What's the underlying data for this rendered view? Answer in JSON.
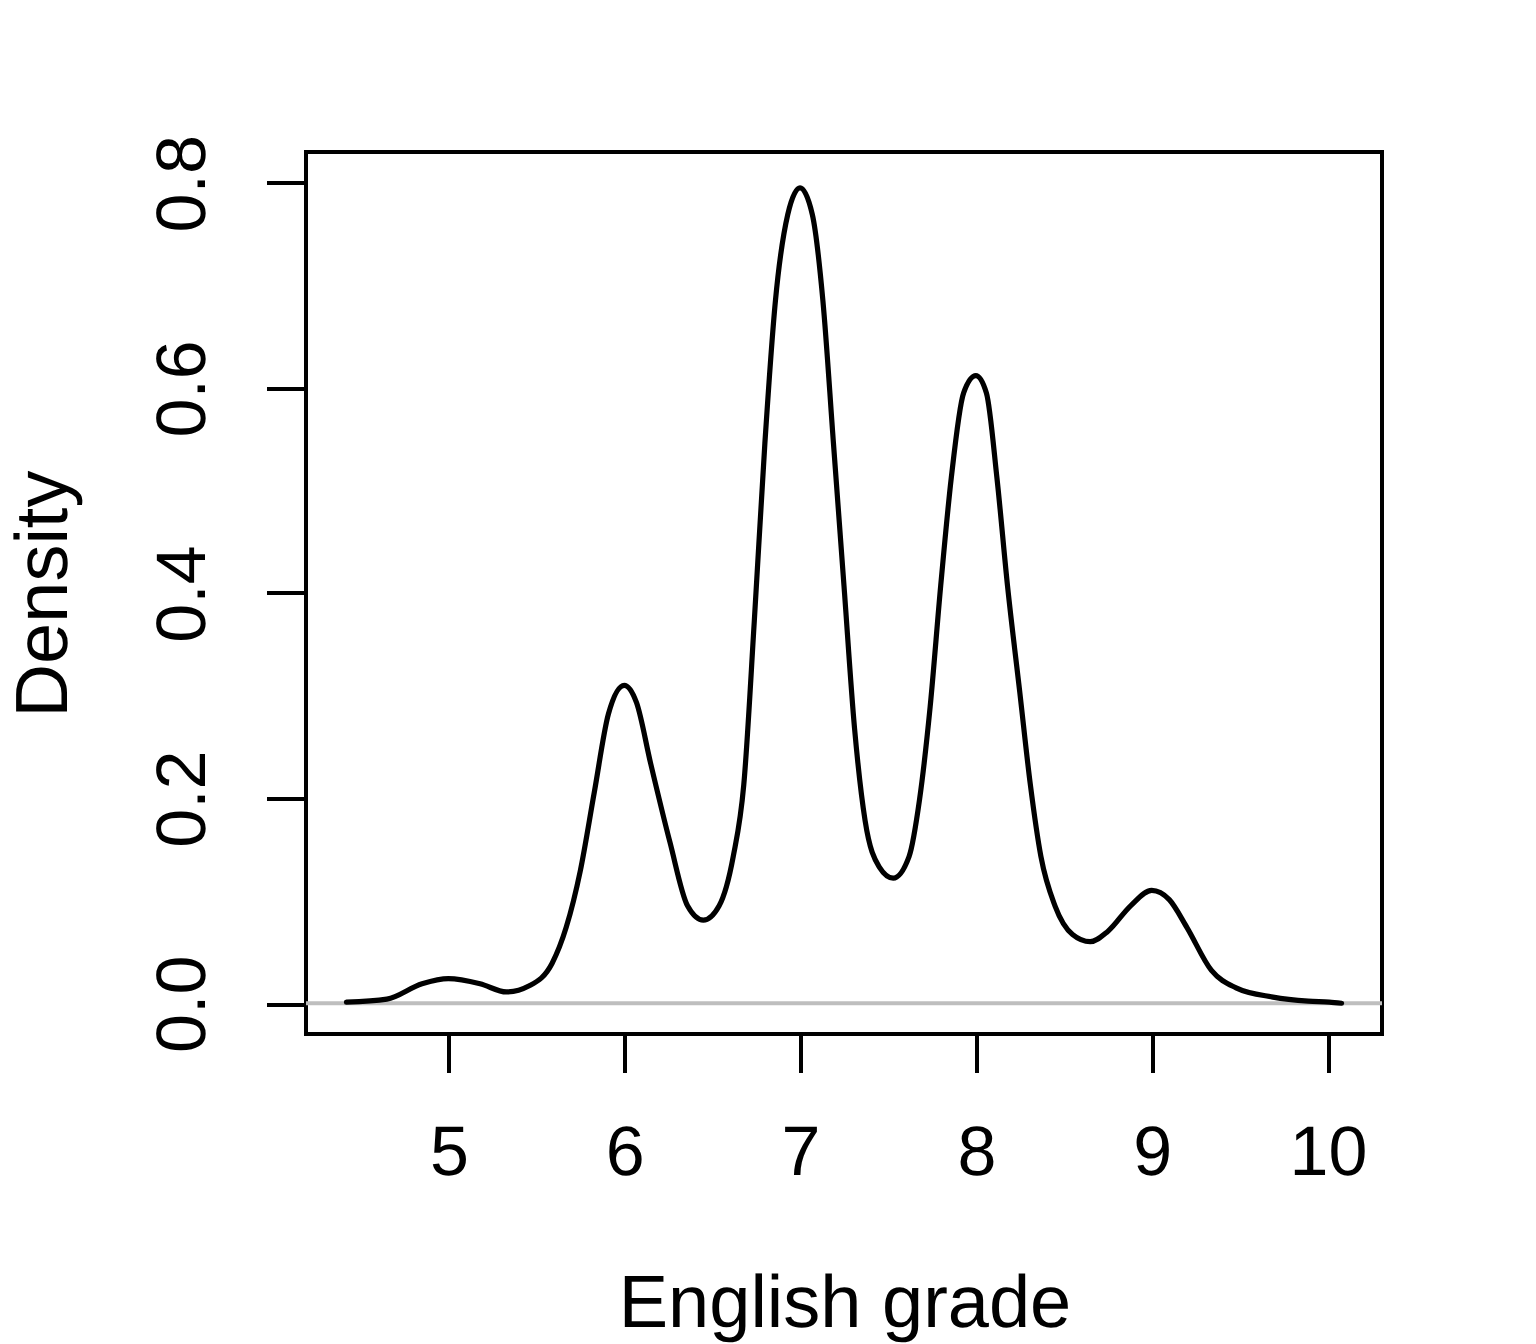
{
  "chart_data": {
    "type": "line",
    "xlabel": "English grade",
    "ylabel": "Density",
    "color": "#000000",
    "x": [
      4.42,
      4.65,
      4.85,
      5.0,
      5.18,
      5.33,
      5.46,
      5.59,
      5.67,
      5.75,
      5.83,
      5.91,
      6.0,
      6.07,
      6.15,
      6.26,
      6.36,
      6.45,
      6.54,
      6.62,
      6.68,
      6.74,
      6.8,
      6.86,
      6.93,
      7.0,
      7.07,
      7.13,
      7.19,
      7.25,
      7.31,
      7.37,
      7.45,
      7.53,
      7.62,
      7.68,
      7.74,
      7.8,
      7.86,
      7.93,
      8.0,
      8.06,
      8.12,
      8.18,
      8.25,
      8.31,
      8.37,
      8.45,
      8.55,
      8.65,
      8.75,
      8.88,
      9.0,
      9.1,
      9.2,
      9.34,
      9.48,
      9.69,
      9.89,
      10.01,
      10.08
    ],
    "values": [
      0.001,
      0.004,
      0.019,
      0.024,
      0.019,
      0.011,
      0.017,
      0.039,
      0.074,
      0.129,
      0.206,
      0.282,
      0.31,
      0.293,
      0.234,
      0.157,
      0.095,
      0.081,
      0.095,
      0.143,
      0.213,
      0.373,
      0.546,
      0.685,
      0.769,
      0.795,
      0.769,
      0.685,
      0.546,
      0.407,
      0.268,
      0.178,
      0.133,
      0.122,
      0.143,
      0.199,
      0.289,
      0.407,
      0.512,
      0.595,
      0.612,
      0.595,
      0.512,
      0.407,
      0.303,
      0.213,
      0.143,
      0.095,
      0.067,
      0.06,
      0.07,
      0.095,
      0.11,
      0.101,
      0.074,
      0.032,
      0.015,
      0.006,
      0.002,
      0.001,
      0.0
    ],
    "xlim": [
      4.19,
      10.31
    ],
    "ylim": [
      -0.03,
      0.83
    ],
    "xticks": [
      5,
      6,
      7,
      8,
      9,
      10
    ],
    "yticks": [
      {
        "value": 0,
        "label": "0.0"
      },
      0.2,
      0.4,
      0.6,
      0.8
    ],
    "ref_lines": [
      {
        "axis": "y",
        "value": 0,
        "color": "#bebebe"
      }
    ]
  }
}
